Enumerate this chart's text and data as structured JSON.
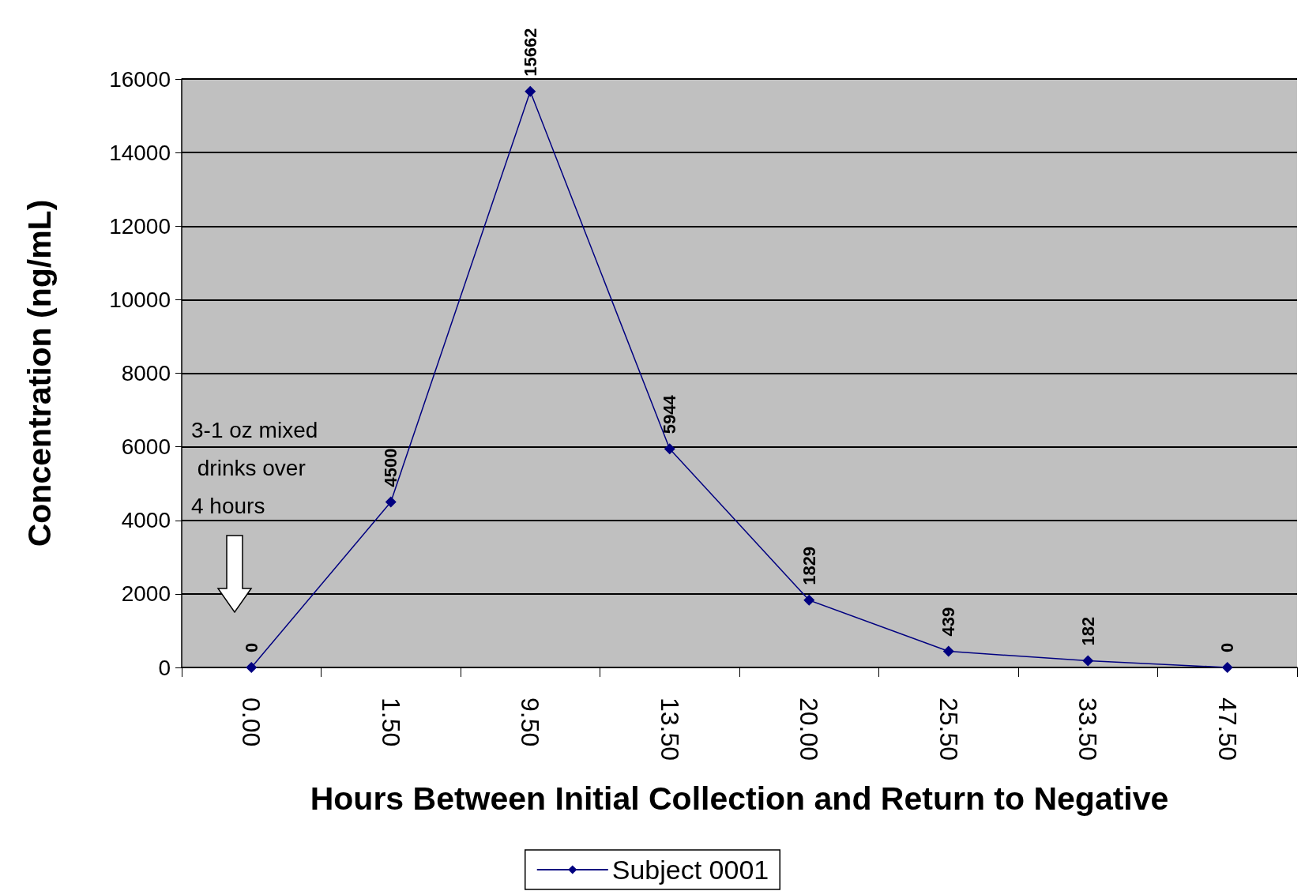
{
  "chart_data": {
    "type": "line",
    "xlabel": "Hours Between Initial Collection and Return to Negative",
    "ylabel": "Concentration (ng/mL)",
    "categories": [
      "0.00",
      "1.50",
      "9.50",
      "13.50",
      "20.00",
      "25.50",
      "33.50",
      "47.50"
    ],
    "series": [
      {
        "name": "Subject 0001",
        "color": "#000080",
        "values": [
          0,
          4500,
          15662,
          5944,
          1829,
          439,
          182,
          0
        ]
      }
    ],
    "ylim": [
      0,
      16000
    ],
    "yticks": [
      0,
      2000,
      4000,
      6000,
      8000,
      10000,
      12000,
      14000,
      16000
    ],
    "grid": "y",
    "legend": "bottom",
    "marker": "diamond",
    "line_style": "solid",
    "data_labels": true,
    "annotations": [
      "3-1 oz mixed\n drinks over\n4 hours"
    ]
  }
}
